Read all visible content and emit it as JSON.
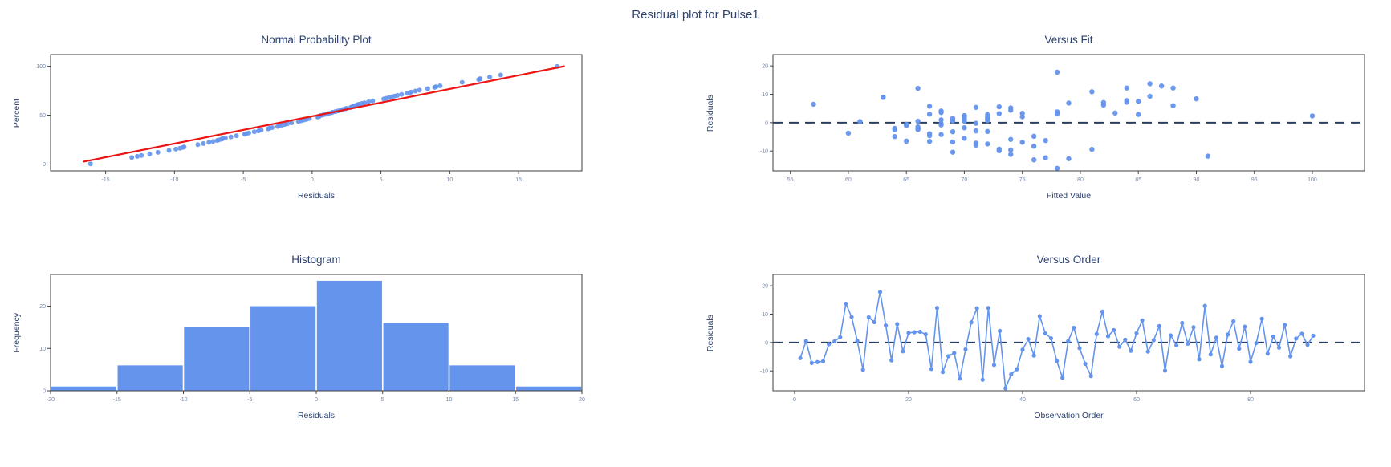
{
  "main_title": "Residual plot for Pulse1",
  "colors": {
    "accent_blue": "#6494ec",
    "red_line": "#ec1313",
    "dash_line": "#2a3f5f",
    "axis": "#3f3f3f",
    "title_text": "#2c4170",
    "tick_text": "#7588ad",
    "background": "#ffffff"
  },
  "observations": {
    "description": "91 regression residuals for Pulse1 in observation order, with fitted values",
    "residuals": [
      -5.5,
      0.5,
      -7.2,
      -6.9,
      -6.6,
      -0.6,
      0.4,
      1.9,
      13.7,
      9.0,
      0.6,
      -9.6,
      8.9,
      7.2,
      17.8,
      6.0,
      -6.3,
      6.5,
      -3.1,
      3.4,
      3.6,
      3.8,
      2.9,
      -9.3,
      12.2,
      -10.4,
      -4.8,
      -3.7,
      -12.7,
      -2.4,
      7.1,
      12.1,
      -13.1,
      12.2,
      -7.9,
      4.1,
      -16.1,
      -11.2,
      -9.4,
      -2.5,
      1.2,
      -4.6,
      9.3,
      3.2,
      1.5,
      -6.5,
      -12.4,
      0.5,
      5.2,
      -2.0,
      -7.5,
      -11.8,
      3.0,
      10.9,
      2.2,
      4.4,
      -1.5,
      1.0,
      -2.9,
      3.3,
      7.8,
      -3.2,
      0.8,
      5.8,
      -9.9,
      2.5,
      -1.0,
      6.9,
      -0.4,
      5.4,
      -5.9,
      12.9,
      -4.2,
      1.7,
      -8.3,
      2.8,
      7.5,
      -2.2,
      5.6,
      -6.8,
      -0.2,
      8.4,
      -3.9,
      2.1,
      -1.8,
      6.2,
      -4.9,
      1.4,
      3.1,
      -0.8,
      2.4
    ],
    "fitted": [
      70,
      66,
      71,
      75,
      67,
      65,
      61,
      72,
      86,
      63,
      69,
      74,
      63,
      84,
      78,
      88,
      77,
      57,
      72,
      83,
      68,
      78,
      85,
      73,
      84,
      69,
      76,
      60,
      79,
      66,
      82,
      66,
      76,
      88,
      71,
      68,
      78,
      74,
      81,
      64,
      70,
      67,
      86,
      73,
      69,
      65,
      77,
      70,
      74,
      64,
      72,
      91,
      67,
      81,
      70,
      74,
      66,
      68,
      71,
      75,
      84,
      69,
      72,
      67,
      73,
      70,
      65,
      79,
      68,
      71,
      74,
      87,
      68,
      70,
      76,
      72,
      85,
      66,
      73,
      69,
      71,
      90,
      67,
      75,
      70,
      82,
      64,
      72,
      78,
      68,
      100
    ]
  },
  "chart_data": [
    {
      "id": "normal_prob",
      "type": "scatter",
      "title": "Normal Probability Plot",
      "xlabel": "Residuals",
      "ylabel": "Percent",
      "xticks": [
        -15,
        -10,
        -5,
        0,
        5,
        10,
        15
      ],
      "yticks": [
        0,
        50,
        100
      ],
      "xlim": [
        -19,
        19.6
      ],
      "ylim": [
        -7,
        112
      ],
      "legend": "none",
      "grid": false,
      "points_source": "sorted observations.residuals vs cumulative percent rank",
      "fit_line": {
        "x1": -16.6,
        "y1": 2.5,
        "x2": 18.3,
        "y2": 100
      }
    },
    {
      "id": "versus_fit",
      "type": "scatter",
      "title": "Versus Fit",
      "xlabel": "Fitted Value",
      "ylabel": "Residuals",
      "xticks": [
        55,
        60,
        65,
        70,
        75,
        80,
        85,
        90,
        95,
        100
      ],
      "yticks": [
        -10,
        0,
        10,
        20
      ],
      "xlim": [
        53.5,
        104.5
      ],
      "ylim": [
        -17,
        24
      ],
      "legend": "none",
      "grid": false,
      "zero_line": true,
      "points_source": "observations.fitted vs observations.residuals"
    },
    {
      "id": "histogram",
      "type": "bar",
      "title": "Histogram",
      "xlabel": "Residuals",
      "ylabel": "Frequency",
      "bin_start": -20,
      "bin_width": 5,
      "counts": [
        1,
        6,
        15,
        20,
        26,
        16,
        6,
        1
      ],
      "xticks": [
        -20,
        -15,
        -10,
        -5,
        0,
        5,
        10,
        15,
        20
      ],
      "yticks": [
        0,
        10,
        20
      ],
      "xlim": [
        -20,
        20
      ],
      "ylim": [
        0,
        27.5
      ],
      "legend": "none",
      "grid": false
    },
    {
      "id": "versus_order",
      "type": "line",
      "title": "Versus Order",
      "xlabel": "Observation Order",
      "ylabel": "Residuals",
      "xticks": [
        0,
        20,
        40,
        60,
        80
      ],
      "yticks": [
        -10,
        0,
        10,
        20
      ],
      "xlim": [
        -3.8,
        100
      ],
      "ylim": [
        -17,
        24
      ],
      "legend": "none",
      "grid": false,
      "zero_line": true,
      "points_source": "observation order (1..91) vs observations.residuals"
    }
  ]
}
